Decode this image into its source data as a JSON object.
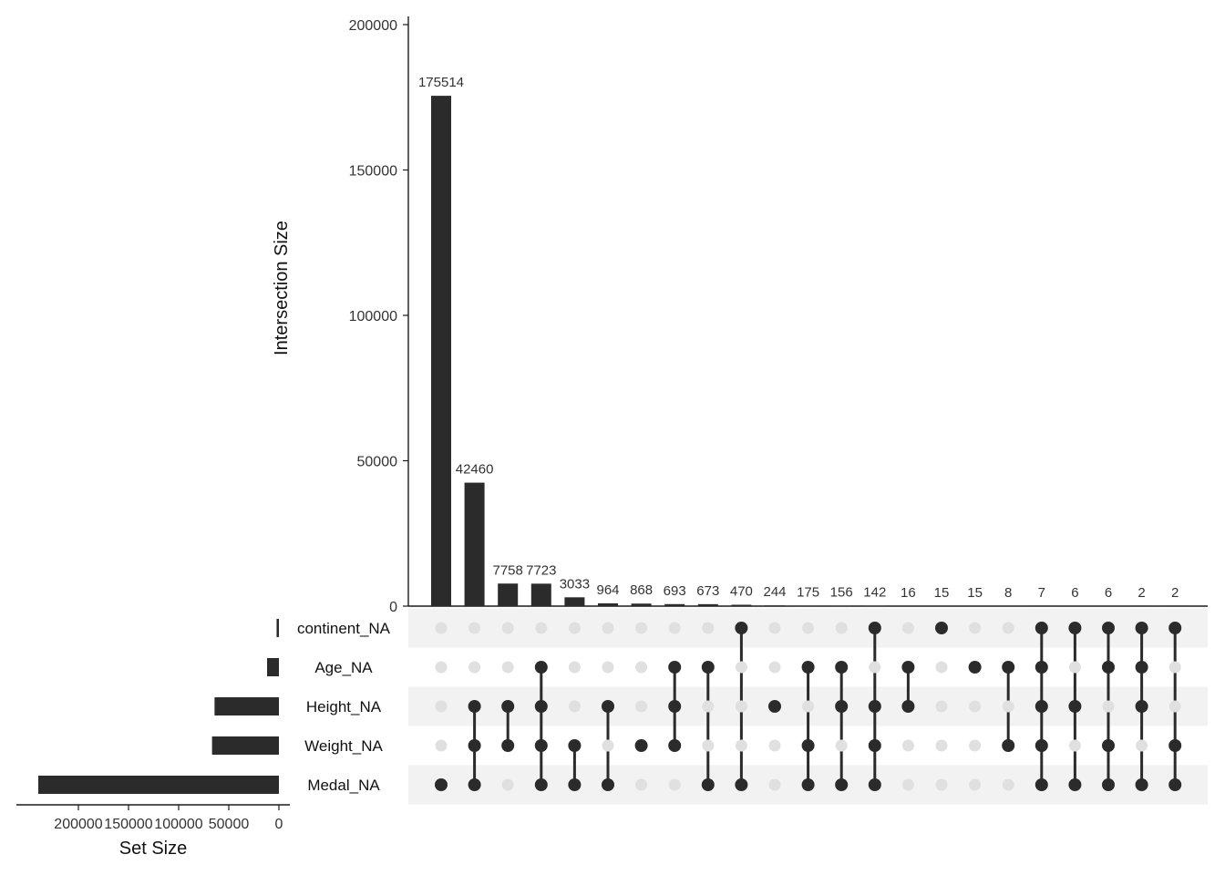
{
  "chart_data": {
    "type": "bar",
    "subtype": "upset",
    "title": "",
    "intersection_axis": {
      "label": "Intersection Size",
      "ylim": [
        0,
        200000
      ],
      "ticks": [
        0,
        50000,
        100000,
        150000,
        200000
      ],
      "tick_labels": [
        "0",
        "50000",
        "100000",
        "150000",
        "200000"
      ]
    },
    "set_size_axis": {
      "label": "Set Size",
      "xlim": [
        250000,
        0
      ],
      "ticks": [
        200000,
        150000,
        100000,
        50000,
        0
      ],
      "tick_labels": [
        "200000",
        "150000",
        "100000",
        "50000",
        "0"
      ]
    },
    "sets": [
      "continent_NA",
      "Age_NA",
      "Height_NA",
      "Weight_NA",
      "Medal_NA"
    ],
    "set_sizes": [
      2300,
      11800,
      64200,
      66700,
      240000
    ],
    "intersections": [
      {
        "value": 175514,
        "label": "175514",
        "members": [
          "Medal_NA"
        ]
      },
      {
        "value": 42460,
        "label": "42460",
        "members": [
          "Height_NA",
          "Weight_NA",
          "Medal_NA"
        ]
      },
      {
        "value": 7758,
        "label": "7758",
        "members": [
          "Height_NA",
          "Weight_NA"
        ]
      },
      {
        "value": 7723,
        "label": "7723",
        "members": [
          "Age_NA",
          "Height_NA",
          "Weight_NA",
          "Medal_NA"
        ]
      },
      {
        "value": 3033,
        "label": "3033",
        "members": [
          "Weight_NA",
          "Medal_NA"
        ]
      },
      {
        "value": 964,
        "label": "964",
        "members": [
          "Height_NA",
          "Medal_NA"
        ]
      },
      {
        "value": 868,
        "label": "868",
        "members": [
          "Weight_NA"
        ]
      },
      {
        "value": 693,
        "label": "693",
        "members": [
          "Age_NA",
          "Height_NA",
          "Weight_NA"
        ]
      },
      {
        "value": 673,
        "label": "673",
        "members": [
          "Age_NA",
          "Medal_NA"
        ]
      },
      {
        "value": 470,
        "label": "470",
        "members": [
          "continent_NA",
          "Medal_NA"
        ]
      },
      {
        "value": 244,
        "label": "244",
        "members": [
          "Height_NA"
        ]
      },
      {
        "value": 175,
        "label": "175",
        "members": [
          "Age_NA",
          "Weight_NA",
          "Medal_NA"
        ]
      },
      {
        "value": 156,
        "label": "156",
        "members": [
          "Age_NA",
          "Height_NA",
          "Medal_NA"
        ]
      },
      {
        "value": 142,
        "label": "142",
        "members": [
          "continent_NA",
          "Height_NA",
          "Weight_NA",
          "Medal_NA"
        ]
      },
      {
        "value": 16,
        "label": "16",
        "members": [
          "Age_NA",
          "Height_NA"
        ]
      },
      {
        "value": 15,
        "label": "15",
        "members": [
          "continent_NA"
        ]
      },
      {
        "value": 15,
        "label": "15",
        "members": [
          "Age_NA"
        ]
      },
      {
        "value": 8,
        "label": "8",
        "members": [
          "Age_NA",
          "Weight_NA"
        ]
      },
      {
        "value": 7,
        "label": "7",
        "members": [
          "continent_NA",
          "Age_NA",
          "Height_NA",
          "Weight_NA",
          "Medal_NA"
        ]
      },
      {
        "value": 6,
        "label": "6",
        "members": [
          "continent_NA",
          "Height_NA",
          "Medal_NA"
        ]
      },
      {
        "value": 6,
        "label": "6",
        "members": [
          "continent_NA",
          "Age_NA",
          "Weight_NA",
          "Medal_NA"
        ]
      },
      {
        "value": 2,
        "label": "2",
        "members": [
          "continent_NA",
          "Age_NA",
          "Height_NA",
          "Medal_NA"
        ]
      },
      {
        "value": 2,
        "label": "2",
        "members": [
          "continent_NA",
          "Weight_NA",
          "Medal_NA"
        ]
      }
    ],
    "colors": {
      "bar": "#2b2b2b",
      "dot_active": "#2b2b2b",
      "dot_inactive": "#e0e0e0",
      "stripe": "#f2f2f2",
      "axis": "#1a1a1a",
      "text": "#333333"
    },
    "grid": false,
    "legend": "none"
  }
}
